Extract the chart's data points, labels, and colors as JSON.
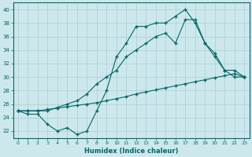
{
  "xlabel": "Humidex (Indice chaleur)",
  "ylabel": "",
  "background_color": "#cde8ec",
  "line_color": "#006868",
  "grid_color": "#aaccd4",
  "xlim": [
    -0.5,
    23.5
  ],
  "ylim": [
    21.0,
    41.0
  ],
  "yticks": [
    22,
    24,
    26,
    28,
    30,
    32,
    34,
    36,
    38,
    40
  ],
  "xticks": [
    0,
    1,
    2,
    3,
    4,
    5,
    6,
    7,
    8,
    9,
    10,
    11,
    12,
    13,
    14,
    15,
    16,
    17,
    18,
    19,
    20,
    21,
    22,
    23
  ],
  "line1_x": [
    0,
    1,
    2,
    3,
    4,
    5,
    6,
    7,
    8,
    9,
    10,
    11,
    12,
    13,
    14,
    15,
    16,
    17,
    18,
    19,
    20,
    21,
    22,
    23
  ],
  "line1_y": [
    25.0,
    24.5,
    24.5,
    23.0,
    22.0,
    22.5,
    21.5,
    22.0,
    25.0,
    28.0,
    33.0,
    35.0,
    37.5,
    37.5,
    38.0,
    38.0,
    39.0,
    40.0,
    38.0,
    35.0,
    33.5,
    31.0,
    30.0,
    30.0
  ],
  "line2_x": [
    0,
    1,
    2,
    3,
    4,
    5,
    6,
    7,
    8,
    9,
    10,
    11,
    12,
    13,
    14,
    15,
    16,
    17,
    18,
    19,
    20,
    21,
    22,
    23
  ],
  "line2_y": [
    25.0,
    25.0,
    25.0,
    25.0,
    25.5,
    26.0,
    26.5,
    27.5,
    29.0,
    30.0,
    31.0,
    33.0,
    34.0,
    35.0,
    36.0,
    36.5,
    35.0,
    38.5,
    38.5,
    35.0,
    33.0,
    31.0,
    31.0,
    30.0
  ],
  "line3_x": [
    0,
    1,
    2,
    3,
    4,
    5,
    6,
    7,
    8,
    9,
    10,
    11,
    12,
    13,
    14,
    15,
    16,
    17,
    18,
    19,
    20,
    21,
    22,
    23
  ],
  "line3_y": [
    25.0,
    25.0,
    25.0,
    25.2,
    25.4,
    25.6,
    25.8,
    26.0,
    26.2,
    26.5,
    26.8,
    27.1,
    27.5,
    27.8,
    28.1,
    28.4,
    28.7,
    29.0,
    29.3,
    29.6,
    29.9,
    30.2,
    30.5,
    30.0
  ]
}
